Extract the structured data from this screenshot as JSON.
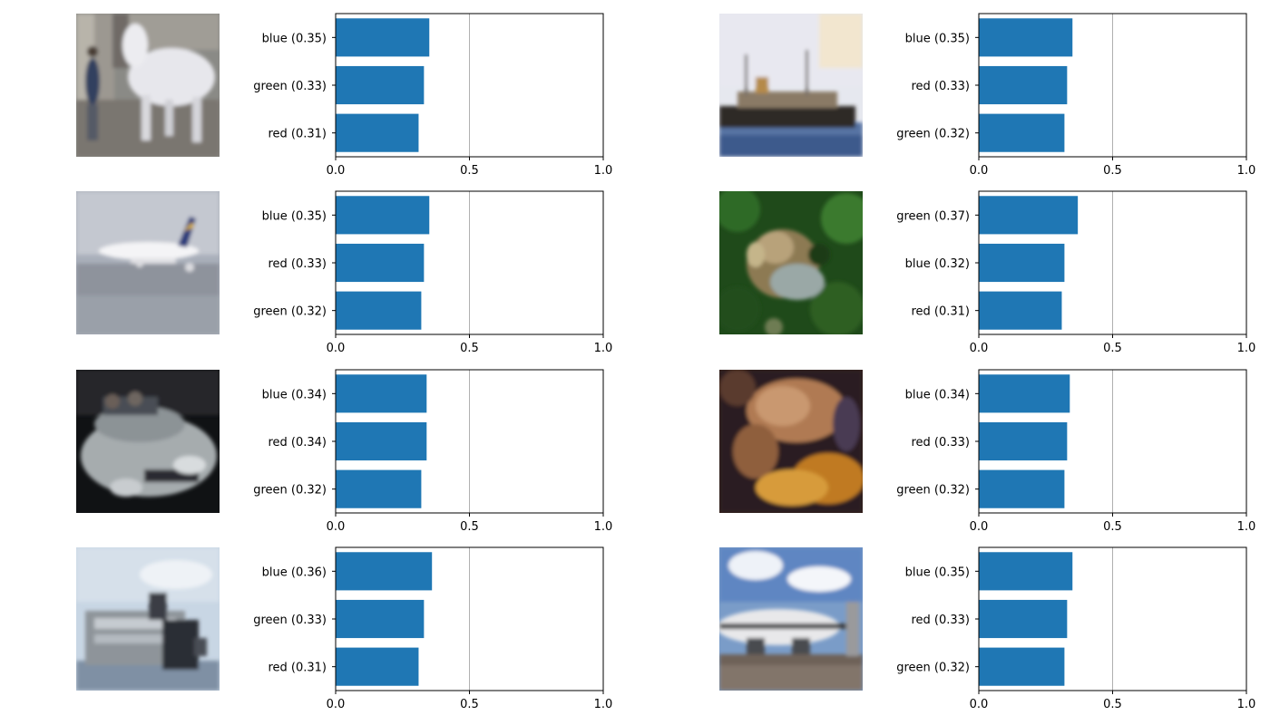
{
  "chart_data": [
    {
      "type": "bar",
      "orientation": "horizontal",
      "image": "white horse with person",
      "categories": [
        "blue (0.35)",
        "green (0.33)",
        "red (0.31)"
      ],
      "values": [
        0.35,
        0.33,
        0.31
      ],
      "xlim": [
        0.0,
        1.0
      ],
      "xticks": [
        "0.0",
        "0.5",
        "1.0"
      ],
      "vline": 0.5,
      "grid": false
    },
    {
      "type": "bar",
      "orientation": "horizontal",
      "image": "ship",
      "categories": [
        "blue (0.35)",
        "red (0.33)",
        "green (0.32)"
      ],
      "values": [
        0.35,
        0.33,
        0.32
      ],
      "xlim": [
        0.0,
        1.0
      ],
      "xticks": [
        "0.0",
        "0.5",
        "1.0"
      ],
      "vline": 0.5,
      "grid": false
    },
    {
      "type": "bar",
      "orientation": "horizontal",
      "image": "airplane",
      "categories": [
        "blue (0.35)",
        "red (0.33)",
        "green (0.32)"
      ],
      "values": [
        0.35,
        0.33,
        0.32
      ],
      "xlim": [
        0.0,
        1.0
      ],
      "xticks": [
        "0.0",
        "0.5",
        "1.0"
      ],
      "vline": 0.5,
      "grid": false
    },
    {
      "type": "bar",
      "orientation": "horizontal",
      "image": "frog on leaves",
      "categories": [
        "green (0.37)",
        "blue (0.32)",
        "red (0.31)"
      ],
      "values": [
        0.37,
        0.32,
        0.31
      ],
      "xlim": [
        0.0,
        1.0
      ],
      "xticks": [
        "0.0",
        "0.5",
        "1.0"
      ],
      "vline": 0.5,
      "grid": false
    },
    {
      "type": "bar",
      "orientation": "horizontal",
      "image": "silver car",
      "categories": [
        "blue (0.34)",
        "red (0.34)",
        "green (0.32)"
      ],
      "values": [
        0.34,
        0.34,
        0.32
      ],
      "xlim": [
        0.0,
        1.0
      ],
      "xticks": [
        "0.0",
        "0.5",
        "1.0"
      ],
      "vline": 0.5,
      "grid": false
    },
    {
      "type": "bar",
      "orientation": "horizontal",
      "image": "brown frog",
      "categories": [
        "blue (0.34)",
        "red (0.33)",
        "green (0.32)"
      ],
      "values": [
        0.34,
        0.33,
        0.32
      ],
      "xlim": [
        0.0,
        1.0
      ],
      "xticks": [
        "0.0",
        "0.5",
        "1.0"
      ],
      "vline": 0.5,
      "grid": false
    },
    {
      "type": "bar",
      "orientation": "horizontal",
      "image": "ferry ship",
      "categories": [
        "blue (0.36)",
        "green (0.33)",
        "red (0.31)"
      ],
      "values": [
        0.36,
        0.33,
        0.31
      ],
      "xlim": [
        0.0,
        1.0
      ],
      "xticks": [
        "0.0",
        "0.5",
        "1.0"
      ],
      "vline": 0.5,
      "grid": false
    },
    {
      "type": "bar",
      "orientation": "horizontal",
      "image": "parked airplane",
      "categories": [
        "blue (0.35)",
        "red (0.33)",
        "green (0.32)"
      ],
      "values": [
        0.35,
        0.33,
        0.32
      ],
      "xlim": [
        0.0,
        1.0
      ],
      "xticks": [
        "0.0",
        "0.5",
        "1.0"
      ],
      "vline": 0.5,
      "grid": false
    }
  ],
  "colors": {
    "bar": "#1f77b4",
    "axis": "#000000",
    "refline": "#b0b0b0",
    "text": "#000000"
  },
  "thumbnail_icons": [
    "horse-photo-icon",
    "ship-photo-icon",
    "airplane-photo-icon",
    "frog-photo-icon",
    "car-photo-icon",
    "frog-photo-icon",
    "ship-photo-icon",
    "airplane-photo-icon"
  ]
}
